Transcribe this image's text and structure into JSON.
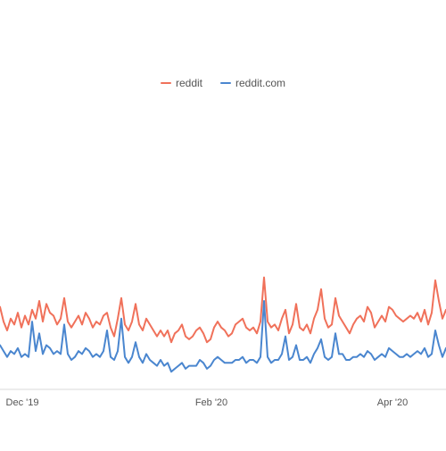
{
  "chart_data": {
    "type": "line",
    "title": "",
    "xlabel": "",
    "ylabel": "",
    "legend_position": "top-center",
    "grid": false,
    "x_tick_labels": [
      "Dec '19",
      "Feb '20",
      "Apr '20"
    ],
    "ylim": [
      0,
      100
    ],
    "series": [
      {
        "name": "reddit",
        "color": "#f0715a",
        "values": [
          28,
          23,
          20,
          24,
          22,
          26,
          21,
          25,
          22,
          27,
          24,
          30,
          23,
          29,
          26,
          25,
          22,
          24,
          31,
          23,
          21,
          23,
          25,
          22,
          26,
          24,
          21,
          23,
          22,
          25,
          26,
          21,
          18,
          24,
          31,
          22,
          20,
          23,
          29,
          22,
          20,
          24,
          22,
          20,
          18,
          20,
          18,
          20,
          16,
          19,
          20,
          22,
          18,
          17,
          18,
          20,
          21,
          19,
          16,
          17,
          21,
          23,
          21,
          20,
          18,
          19,
          22,
          23,
          24,
          21,
          20,
          21,
          19,
          23,
          38,
          23,
          21,
          22,
          20,
          24,
          27,
          19,
          22,
          29,
          21,
          20,
          22,
          19,
          24,
          27,
          34,
          24,
          21,
          22,
          31,
          25,
          23,
          21,
          19,
          22,
          24,
          25,
          23,
          28,
          26,
          21,
          23,
          25,
          23,
          28,
          27,
          25,
          24,
          23,
          24,
          25,
          24,
          26,
          23,
          27,
          22,
          26,
          37,
          30,
          24,
          27
        ]
      },
      {
        "name": "reddit.com",
        "color": "#4a86cf",
        "values": [
          15,
          13,
          11,
          13,
          12,
          14,
          11,
          12,
          11,
          23,
          13,
          19,
          12,
          15,
          14,
          12,
          13,
          12,
          22,
          12,
          10,
          11,
          13,
          12,
          14,
          13,
          11,
          12,
          11,
          13,
          20,
          11,
          10,
          13,
          24,
          11,
          9,
          11,
          16,
          11,
          9,
          12,
          10,
          9,
          8,
          10,
          8,
          9,
          6,
          7,
          8,
          9,
          7,
          8,
          8,
          8,
          10,
          9,
          7,
          8,
          10,
          11,
          10,
          9,
          9,
          9,
          10,
          10,
          11,
          9,
          10,
          10,
          9,
          11,
          30,
          11,
          9,
          10,
          10,
          12,
          18,
          10,
          11,
          15,
          10,
          10,
          11,
          9,
          12,
          14,
          17,
          11,
          10,
          11,
          19,
          12,
          12,
          10,
          10,
          11,
          11,
          12,
          11,
          13,
          12,
          10,
          11,
          12,
          11,
          14,
          13,
          12,
          11,
          11,
          12,
          11,
          12,
          13,
          12,
          14,
          11,
          12,
          20,
          15,
          11,
          14
        ]
      }
    ]
  }
}
